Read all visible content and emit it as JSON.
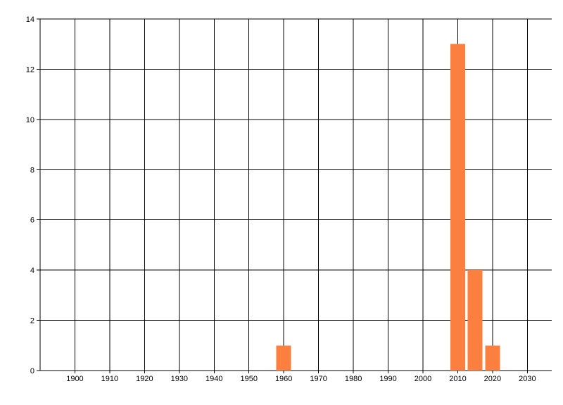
{
  "chart_data": {
    "type": "bar",
    "title": "",
    "xlabel": "",
    "ylabel": "",
    "x": [
      1960,
      2010,
      2015,
      2020
    ],
    "values": [
      1,
      13,
      4,
      1
    ],
    "xlim": [
      1890,
      2037
    ],
    "ylim": [
      0,
      14
    ],
    "xticks": [
      1900,
      1910,
      1920,
      1930,
      1940,
      1950,
      1960,
      1970,
      1980,
      1990,
      2000,
      2010,
      2020,
      2030
    ],
    "yticks": [
      0,
      2,
      4,
      6,
      8,
      10,
      12,
      14
    ],
    "grid": true,
    "legend": "none",
    "bar_color": "#fb8040",
    "axis_color": "#000000",
    "label_color": "#000000",
    "background": "#ffffff",
    "bar_width_years": 4.25
  }
}
